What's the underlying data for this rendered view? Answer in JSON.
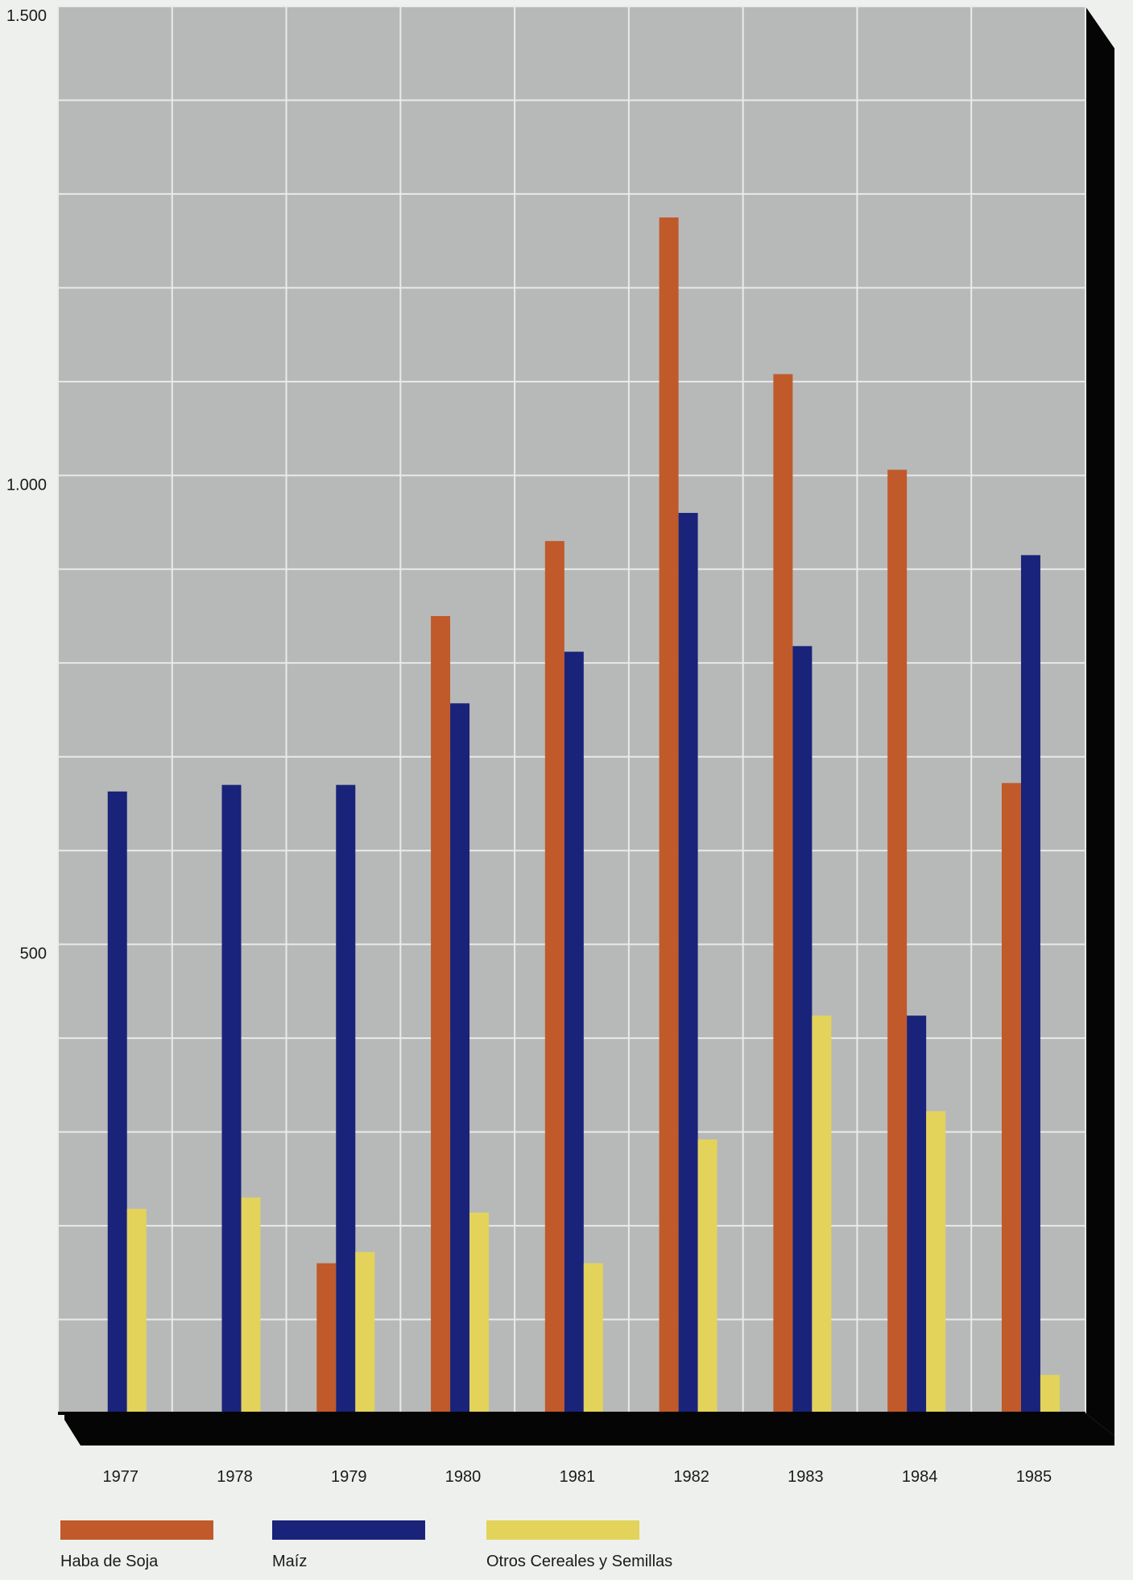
{
  "chart_data": {
    "type": "bar",
    "title": "",
    "xlabel": "",
    "ylabel": "",
    "categories": [
      "1977",
      "1978",
      "1979",
      "1980",
      "1981",
      "1982",
      "1983",
      "1984",
      "1985"
    ],
    "series": [
      {
        "name": "Haba de Soja",
        "color": "#c05a2a",
        "values": [
          null,
          null,
          160,
          850,
          930,
          1275,
          1108,
          1006,
          672
        ]
      },
      {
        "name": "Maíz",
        "color": "#1a237a",
        "values": [
          663,
          670,
          670,
          757,
          812,
          960,
          818,
          424,
          915
        ]
      },
      {
        "name": "Otros Cereales y Semillas",
        "color": "#e3d35a",
        "values": [
          218,
          230,
          172,
          214,
          160,
          292,
          424,
          322,
          41
        ]
      }
    ],
    "yticks": [
      {
        "value": 1500,
        "label": "1.500"
      },
      {
        "value": 1000,
        "label": "1.000"
      },
      {
        "value": 500,
        "label": "500"
      }
    ],
    "ylim": [
      0,
      1500
    ],
    "grid": true,
    "legend_position": "bottom"
  }
}
